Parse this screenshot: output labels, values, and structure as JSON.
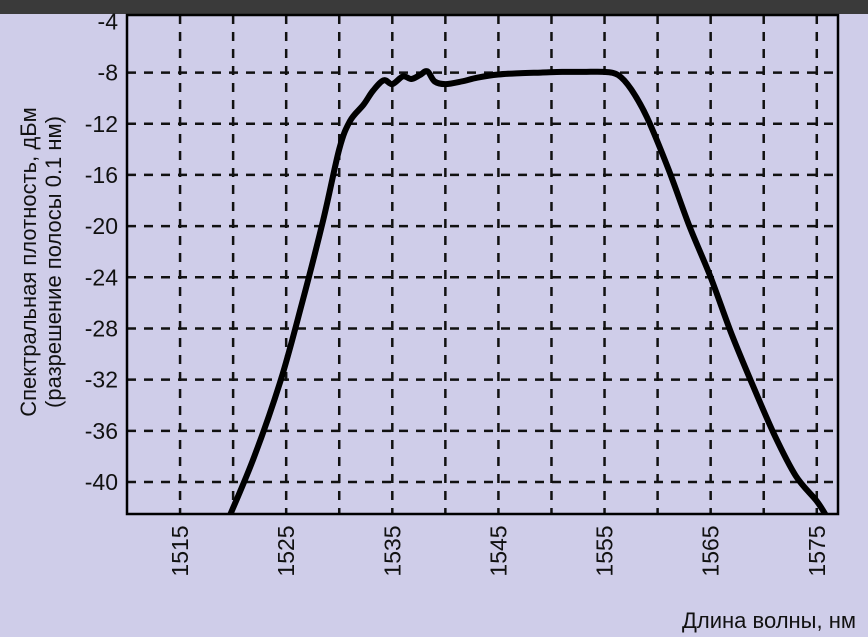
{
  "chart_data": {
    "type": "line",
    "title": "",
    "xlabel": "Длина волны, нм",
    "ylabel_line1": "Спектральная плотность, дБм",
    "ylabel_line2": "(разрешение полосы 0.1 нм)",
    "xlim": [
      1510,
      1577
    ],
    "ylim": [
      -42.5,
      -3.5
    ],
    "x_ticks": [
      1515,
      1525,
      1535,
      1545,
      1555,
      1565,
      1575
    ],
    "y_ticks": [
      -4,
      -8,
      -12,
      -16,
      -20,
      -24,
      -28,
      -32,
      -36,
      -40
    ],
    "x_gridlines": [
      1515,
      1520,
      1525,
      1530,
      1535,
      1540,
      1545,
      1550,
      1555,
      1560,
      1565,
      1570,
      1575
    ],
    "y_gridlines": [
      -8,
      -12,
      -16,
      -20,
      -24,
      -28,
      -32,
      -36,
      -40
    ],
    "grid": true,
    "series": [
      {
        "x": [
          1519.5,
          1522,
          1524.5,
          1526.5,
          1528.5,
          1530,
          1531,
          1532.3,
          1533.2,
          1534.2,
          1535,
          1536,
          1536.8,
          1537.6,
          1538.3,
          1539,
          1540,
          1541.5,
          1543,
          1545,
          1547,
          1549,
          1551,
          1553,
          1555,
          1556.3,
          1557.5,
          1559,
          1561,
          1563,
          1565,
          1567,
          1569,
          1571,
          1573,
          1575,
          1576
        ],
        "y": [
          -43,
          -38,
          -32,
          -26,
          -19.5,
          -14,
          -11.8,
          -10.5,
          -9.4,
          -8.6,
          -8.9,
          -8.3,
          -8.5,
          -8.2,
          -7.9,
          -8.7,
          -8.9,
          -8.7,
          -8.4,
          -8.15,
          -8.05,
          -8.0,
          -7.95,
          -7.95,
          -7.95,
          -8.2,
          -9.3,
          -11.5,
          -15.5,
          -20,
          -24,
          -28.5,
          -32.5,
          -36.3,
          -39.5,
          -41.5,
          -42.8
        ]
      }
    ]
  }
}
